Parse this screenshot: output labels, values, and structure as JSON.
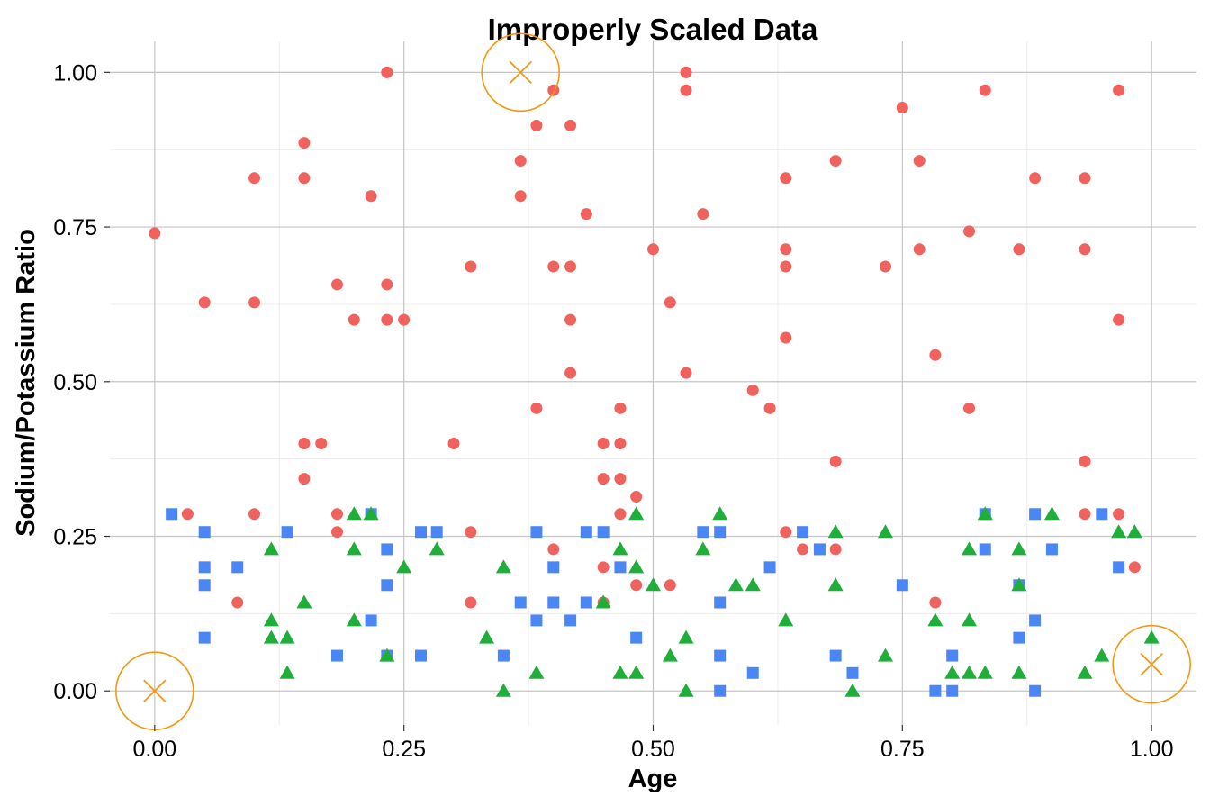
{
  "chart_data": {
    "type": "scatter",
    "title": "Improperly Scaled Data",
    "xlabel": "Age",
    "ylabel": "Sodium/Potassium Ratio",
    "xlim": [
      -0.045,
      1.045
    ],
    "ylim": [
      -0.055,
      1.05
    ],
    "x_ticks": [
      0.0,
      0.25,
      0.5,
      0.75,
      1.0
    ],
    "x_tick_labels": [
      "0.00",
      "0.25",
      "0.50",
      "0.75",
      "1.00"
    ],
    "y_ticks": [
      0.0,
      0.25,
      0.5,
      0.75,
      1.0
    ],
    "y_tick_labels": [
      "0.00",
      "0.25",
      "0.50",
      "0.75",
      "1.00"
    ],
    "grid": true,
    "legend": "none",
    "colors": {
      "circle": "#f0625d",
      "square": "#4a86f5",
      "triangle": "#1fae3a",
      "highlight": "#f5960f",
      "grid_major": "#c4c4c4",
      "grid_minor": "#ececec"
    },
    "series": [
      {
        "marker": "circle",
        "points": [
          [
            0.0,
            0.74
          ],
          [
            0.033,
            0.286
          ],
          [
            0.05,
            0.628
          ],
          [
            0.083,
            0.143
          ],
          [
            0.1,
            0.829
          ],
          [
            0.1,
            0.628
          ],
          [
            0.1,
            0.286
          ],
          [
            0.15,
            0.886
          ],
          [
            0.15,
            0.829
          ],
          [
            0.15,
            0.4
          ],
          [
            0.15,
            0.343
          ],
          [
            0.167,
            0.4
          ],
          [
            0.183,
            0.657
          ],
          [
            0.183,
            0.286
          ],
          [
            0.183,
            0.257
          ],
          [
            0.2,
            0.6
          ],
          [
            0.217,
            0.8
          ],
          [
            0.233,
            1.0
          ],
          [
            0.233,
            0.657
          ],
          [
            0.233,
            0.6
          ],
          [
            0.25,
            0.6
          ],
          [
            0.3,
            0.4
          ],
          [
            0.317,
            0.686
          ],
          [
            0.317,
            0.257
          ],
          [
            0.317,
            0.143
          ],
          [
            0.367,
            0.857
          ],
          [
            0.367,
            0.8
          ],
          [
            0.383,
            0.914
          ],
          [
            0.383,
            0.457
          ],
          [
            0.4,
            0.971
          ],
          [
            0.4,
            0.686
          ],
          [
            0.4,
            0.229
          ],
          [
            0.417,
            0.914
          ],
          [
            0.417,
            0.686
          ],
          [
            0.417,
            0.6
          ],
          [
            0.417,
            0.514
          ],
          [
            0.433,
            0.771
          ],
          [
            0.45,
            0.4
          ],
          [
            0.45,
            0.343
          ],
          [
            0.45,
            0.2
          ],
          [
            0.45,
            0.143
          ],
          [
            0.467,
            0.457
          ],
          [
            0.467,
            0.4
          ],
          [
            0.467,
            0.343
          ],
          [
            0.467,
            0.286
          ],
          [
            0.483,
            0.314
          ],
          [
            0.483,
            0.171
          ],
          [
            0.5,
            0.714
          ],
          [
            0.517,
            0.628
          ],
          [
            0.517,
            0.171
          ],
          [
            0.533,
            1.0
          ],
          [
            0.533,
            0.971
          ],
          [
            0.533,
            0.514
          ],
          [
            0.55,
            0.771
          ],
          [
            0.6,
            0.486
          ],
          [
            0.617,
            0.457
          ],
          [
            0.633,
            0.829
          ],
          [
            0.633,
            0.714
          ],
          [
            0.633,
            0.686
          ],
          [
            0.633,
            0.571
          ],
          [
            0.633,
            0.257
          ],
          [
            0.65,
            0.229
          ],
          [
            0.683,
            0.857
          ],
          [
            0.683,
            0.371
          ],
          [
            0.683,
            0.229
          ],
          [
            0.733,
            0.686
          ],
          [
            0.75,
            0.943
          ],
          [
            0.767,
            0.857
          ],
          [
            0.767,
            0.714
          ],
          [
            0.783,
            0.543
          ],
          [
            0.783,
            0.143
          ],
          [
            0.817,
            0.743
          ],
          [
            0.817,
            0.457
          ],
          [
            0.833,
            0.971
          ],
          [
            0.867,
            0.714
          ],
          [
            0.883,
            0.829
          ],
          [
            0.933,
            0.829
          ],
          [
            0.933,
            0.714
          ],
          [
            0.933,
            0.371
          ],
          [
            0.933,
            0.286
          ],
          [
            0.967,
            0.971
          ],
          [
            0.967,
            0.6
          ],
          [
            0.967,
            0.286
          ],
          [
            0.983,
            0.2
          ]
        ]
      },
      {
        "marker": "square",
        "points": [
          [
            0.017,
            0.286
          ],
          [
            0.05,
            0.257
          ],
          [
            0.05,
            0.2
          ],
          [
            0.05,
            0.171
          ],
          [
            0.05,
            0.086
          ],
          [
            0.083,
            0.2
          ],
          [
            0.133,
            0.257
          ],
          [
            0.183,
            0.057
          ],
          [
            0.217,
            0.286
          ],
          [
            0.217,
            0.114
          ],
          [
            0.233,
            0.229
          ],
          [
            0.233,
            0.171
          ],
          [
            0.233,
            0.057
          ],
          [
            0.267,
            0.257
          ],
          [
            0.267,
            0.057
          ],
          [
            0.283,
            0.257
          ],
          [
            0.35,
            0.057
          ],
          [
            0.367,
            0.143
          ],
          [
            0.383,
            0.257
          ],
          [
            0.383,
            0.114
          ],
          [
            0.4,
            0.2
          ],
          [
            0.4,
            0.143
          ],
          [
            0.417,
            0.114
          ],
          [
            0.433,
            0.257
          ],
          [
            0.433,
            0.143
          ],
          [
            0.45,
            0.257
          ],
          [
            0.467,
            0.2
          ],
          [
            0.483,
            0.086
          ],
          [
            0.55,
            0.257
          ],
          [
            0.567,
            0.257
          ],
          [
            0.567,
            0.143
          ],
          [
            0.567,
            0.057
          ],
          [
            0.567,
            0.0
          ],
          [
            0.6,
            0.029
          ],
          [
            0.617,
            0.2
          ],
          [
            0.65,
            0.257
          ],
          [
            0.667,
            0.229
          ],
          [
            0.683,
            0.057
          ],
          [
            0.7,
            0.029
          ],
          [
            0.75,
            0.171
          ],
          [
            0.783,
            0.0
          ],
          [
            0.8,
            0.057
          ],
          [
            0.8,
            0.0
          ],
          [
            0.833,
            0.286
          ],
          [
            0.833,
            0.229
          ],
          [
            0.867,
            0.171
          ],
          [
            0.867,
            0.086
          ],
          [
            0.883,
            0.286
          ],
          [
            0.883,
            0.114
          ],
          [
            0.883,
            0.0
          ],
          [
            0.9,
            0.229
          ],
          [
            0.95,
            0.286
          ],
          [
            0.967,
            0.2
          ]
        ]
      },
      {
        "marker": "triangle",
        "points": [
          [
            0.117,
            0.229
          ],
          [
            0.117,
            0.114
          ],
          [
            0.117,
            0.086
          ],
          [
            0.133,
            0.086
          ],
          [
            0.133,
            0.029
          ],
          [
            0.15,
            0.143
          ],
          [
            0.2,
            0.286
          ],
          [
            0.2,
            0.229
          ],
          [
            0.2,
            0.114
          ],
          [
            0.217,
            0.286
          ],
          [
            0.233,
            0.057
          ],
          [
            0.25,
            0.2
          ],
          [
            0.283,
            0.229
          ],
          [
            0.333,
            0.086
          ],
          [
            0.35,
            0.2
          ],
          [
            0.35,
            0.0
          ],
          [
            0.383,
            0.029
          ],
          [
            0.45,
            0.143
          ],
          [
            0.467,
            0.229
          ],
          [
            0.467,
            0.029
          ],
          [
            0.483,
            0.286
          ],
          [
            0.483,
            0.2
          ],
          [
            0.483,
            0.029
          ],
          [
            0.5,
            0.171
          ],
          [
            0.517,
            0.057
          ],
          [
            0.533,
            0.086
          ],
          [
            0.533,
            0.0
          ],
          [
            0.55,
            0.229
          ],
          [
            0.567,
            0.286
          ],
          [
            0.583,
            0.171
          ],
          [
            0.6,
            0.171
          ],
          [
            0.633,
            0.114
          ],
          [
            0.683,
            0.257
          ],
          [
            0.683,
            0.171
          ],
          [
            0.7,
            0.0
          ],
          [
            0.733,
            0.257
          ],
          [
            0.733,
            0.057
          ],
          [
            0.783,
            0.114
          ],
          [
            0.8,
            0.029
          ],
          [
            0.817,
            0.229
          ],
          [
            0.817,
            0.114
          ],
          [
            0.817,
            0.029
          ],
          [
            0.833,
            0.286
          ],
          [
            0.833,
            0.029
          ],
          [
            0.867,
            0.229
          ],
          [
            0.867,
            0.171
          ],
          [
            0.867,
            0.029
          ],
          [
            0.9,
            0.286
          ],
          [
            0.933,
            0.029
          ],
          [
            0.95,
            0.057
          ],
          [
            0.967,
            0.257
          ],
          [
            0.983,
            0.257
          ],
          [
            1.0,
            0.086
          ]
        ]
      }
    ],
    "highlights": [
      {
        "x": 0.0,
        "y": 0.0
      },
      {
        "x": 0.367,
        "y": 1.0
      },
      {
        "x": 1.0,
        "y": 0.043
      }
    ]
  }
}
